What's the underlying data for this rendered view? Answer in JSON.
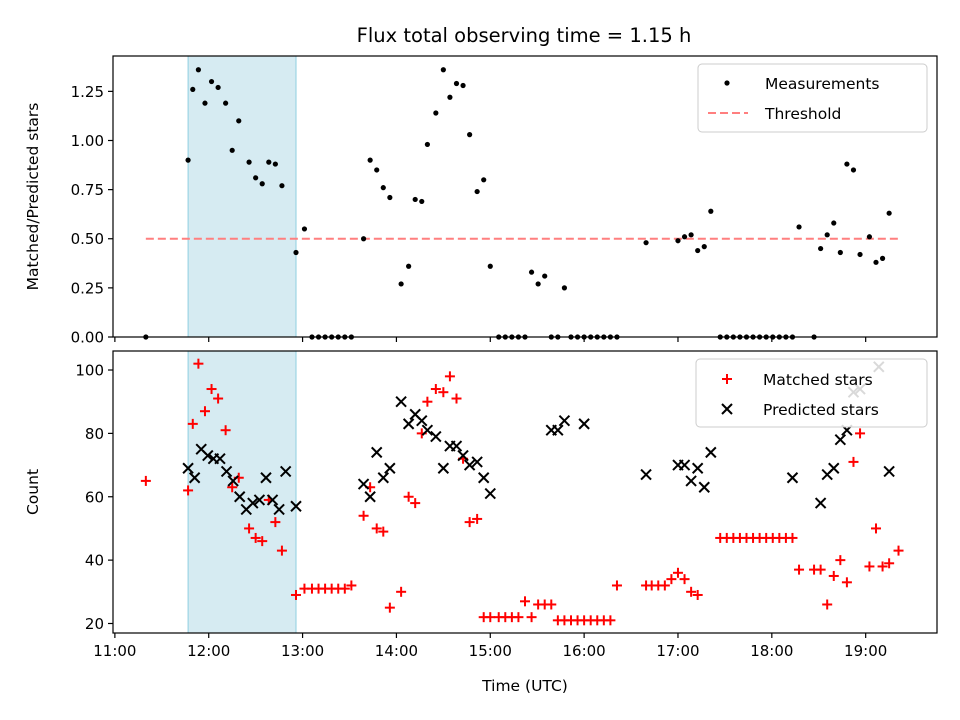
{
  "title": "Flux total observing time = 1.15 h",
  "x_axis": {
    "label": "Time (UTC)",
    "ticks": [
      "11:00",
      "12:00",
      "13:00",
      "14:00",
      "15:00",
      "16:00",
      "17:00",
      "18:00",
      "19:00"
    ],
    "tick_values": [
      11,
      12,
      13,
      14,
      15,
      16,
      17,
      18,
      19
    ],
    "range": [
      10.98,
      19.76
    ]
  },
  "colors": {
    "measurements": "#000000",
    "threshold": "#ff7f7f",
    "matched": "#ff0000",
    "predicted": "#000000",
    "highlight": "#add8e6"
  },
  "chart_data": [
    {
      "type": "scatter",
      "ylabel": "Matched/Predicted stars",
      "ylim": [
        0,
        1.43
      ],
      "yticks": [
        "0.00",
        "0.25",
        "0.50",
        "0.75",
        "1.00",
        "1.25"
      ],
      "ytick_values": [
        0,
        0.25,
        0.5,
        0.75,
        1.0,
        1.25
      ],
      "highlight_span": [
        11.78,
        12.93
      ],
      "legend": {
        "position": "top-right",
        "entries": [
          "Measurements",
          "Threshold"
        ]
      },
      "threshold": {
        "name": "Threshold",
        "x": [
          11.33,
          19.35
        ],
        "y": 0.5
      },
      "series": [
        {
          "name": "Measurements",
          "points": [
            [
              11.33,
              0.0
            ],
            [
              11.78,
              0.9
            ],
            [
              11.83,
              1.26
            ],
            [
              11.89,
              1.36
            ],
            [
              11.96,
              1.19
            ],
            [
              12.03,
              1.3
            ],
            [
              12.1,
              1.27
            ],
            [
              12.18,
              1.19
            ],
            [
              12.25,
              0.95
            ],
            [
              12.32,
              1.1
            ],
            [
              12.43,
              0.89
            ],
            [
              12.5,
              0.81
            ],
            [
              12.57,
              0.78
            ],
            [
              12.64,
              0.89
            ],
            [
              12.71,
              0.88
            ],
            [
              12.78,
              0.77
            ],
            [
              12.93,
              0.43
            ],
            [
              13.02,
              0.55
            ],
            [
              13.1,
              0.0
            ],
            [
              13.17,
              0.0
            ],
            [
              13.24,
              0.0
            ],
            [
              13.31,
              0.0
            ],
            [
              13.38,
              0.0
            ],
            [
              13.45,
              0.0
            ],
            [
              13.52,
              0.0
            ],
            [
              13.65,
              0.5
            ],
            [
              13.72,
              0.9
            ],
            [
              13.79,
              0.85
            ],
            [
              13.86,
              0.76
            ],
            [
              13.93,
              0.71
            ],
            [
              14.05,
              0.27
            ],
            [
              14.13,
              0.36
            ],
            [
              14.2,
              0.7
            ],
            [
              14.27,
              0.69
            ],
            [
              14.33,
              0.98
            ],
            [
              14.42,
              1.14
            ],
            [
              14.5,
              1.36
            ],
            [
              14.57,
              1.22
            ],
            [
              14.64,
              1.29
            ],
            [
              14.71,
              1.28
            ],
            [
              14.78,
              1.03
            ],
            [
              14.86,
              0.74
            ],
            [
              14.93,
              0.8
            ],
            [
              15.0,
              0.36
            ],
            [
              15.09,
              0.0
            ],
            [
              15.16,
              0.0
            ],
            [
              15.23,
              0.0
            ],
            [
              15.3,
              0.0
            ],
            [
              15.37,
              0.0
            ],
            [
              15.44,
              0.33
            ],
            [
              15.51,
              0.27
            ],
            [
              15.58,
              0.31
            ],
            [
              15.65,
              0.0
            ],
            [
              15.72,
              0.0
            ],
            [
              15.79,
              0.25
            ],
            [
              15.86,
              0.0
            ],
            [
              15.93,
              0.0
            ],
            [
              16.0,
              0.0
            ],
            [
              16.07,
              0.0
            ],
            [
              16.14,
              0.0
            ],
            [
              16.21,
              0.0
            ],
            [
              16.28,
              0.0
            ],
            [
              16.35,
              0.0
            ],
            [
              16.66,
              0.48
            ],
            [
              17.0,
              0.49
            ],
            [
              17.07,
              0.51
            ],
            [
              17.14,
              0.52
            ],
            [
              17.21,
              0.44
            ],
            [
              17.28,
              0.46
            ],
            [
              17.35,
              0.64
            ],
            [
              17.45,
              0.0
            ],
            [
              17.52,
              0.0
            ],
            [
              17.59,
              0.0
            ],
            [
              17.66,
              0.0
            ],
            [
              17.73,
              0.0
            ],
            [
              17.8,
              0.0
            ],
            [
              17.87,
              0.0
            ],
            [
              17.94,
              0.0
            ],
            [
              18.01,
              0.0
            ],
            [
              18.08,
              0.0
            ],
            [
              18.15,
              0.0
            ],
            [
              18.22,
              0.0
            ],
            [
              18.29,
              0.56
            ],
            [
              18.45,
              0.0
            ],
            [
              18.52,
              0.45
            ],
            [
              18.59,
              0.52
            ],
            [
              18.66,
              0.58
            ],
            [
              18.73,
              0.43
            ],
            [
              18.8,
              0.88
            ],
            [
              18.87,
              0.85
            ],
            [
              18.94,
              0.42
            ],
            [
              19.04,
              0.51
            ],
            [
              19.11,
              0.38
            ],
            [
              19.18,
              0.4
            ],
            [
              19.25,
              0.63
            ]
          ]
        }
      ]
    },
    {
      "type": "scatter",
      "ylabel": "Count",
      "ylim": [
        17,
        106
      ],
      "yticks": [
        "20",
        "40",
        "60",
        "80",
        "100"
      ],
      "ytick_values": [
        20,
        40,
        60,
        80,
        100
      ],
      "highlight_span": [
        11.78,
        12.93
      ],
      "legend": {
        "position": "top-right",
        "entries": [
          "Matched stars",
          "Predicted stars"
        ]
      },
      "series": [
        {
          "name": "Matched stars",
          "marker": "plus",
          "points": [
            [
              11.33,
              65
            ],
            [
              11.78,
              62
            ],
            [
              11.83,
              83
            ],
            [
              11.89,
              102
            ],
            [
              11.96,
              87
            ],
            [
              12.03,
              94
            ],
            [
              12.1,
              91
            ],
            [
              12.18,
              81
            ],
            [
              12.25,
              63
            ],
            [
              12.32,
              66
            ],
            [
              12.43,
              50
            ],
            [
              12.5,
              47
            ],
            [
              12.57,
              46
            ],
            [
              12.64,
              59
            ],
            [
              12.71,
              52
            ],
            [
              12.78,
              43
            ],
            [
              12.93,
              29
            ],
            [
              13.02,
              31
            ],
            [
              13.1,
              31
            ],
            [
              13.17,
              31
            ],
            [
              13.24,
              31
            ],
            [
              13.31,
              31
            ],
            [
              13.38,
              31
            ],
            [
              13.45,
              31
            ],
            [
              13.52,
              32
            ],
            [
              13.65,
              54
            ],
            [
              13.72,
              63
            ],
            [
              13.79,
              50
            ],
            [
              13.86,
              49
            ],
            [
              13.93,
              25
            ],
            [
              14.05,
              30
            ],
            [
              14.13,
              60
            ],
            [
              14.2,
              58
            ],
            [
              14.27,
              80
            ],
            [
              14.33,
              90
            ],
            [
              14.42,
              94
            ],
            [
              14.5,
              93
            ],
            [
              14.57,
              98
            ],
            [
              14.64,
              91
            ],
            [
              14.71,
              72
            ],
            [
              14.78,
              52
            ],
            [
              14.86,
              53
            ],
            [
              14.93,
              22
            ],
            [
              15.0,
              22
            ],
            [
              15.09,
              22
            ],
            [
              15.16,
              22
            ],
            [
              15.23,
              22
            ],
            [
              15.3,
              22
            ],
            [
              15.37,
              27
            ],
            [
              15.44,
              22
            ],
            [
              15.51,
              26
            ],
            [
              15.58,
              26
            ],
            [
              15.65,
              26
            ],
            [
              15.72,
              21
            ],
            [
              15.79,
              21
            ],
            [
              15.86,
              21
            ],
            [
              15.93,
              21
            ],
            [
              16.0,
              21
            ],
            [
              16.07,
              21
            ],
            [
              16.14,
              21
            ],
            [
              16.21,
              21
            ],
            [
              16.28,
              21
            ],
            [
              16.35,
              32
            ],
            [
              16.66,
              32
            ],
            [
              16.72,
              32
            ],
            [
              16.79,
              32
            ],
            [
              16.86,
              32
            ],
            [
              16.93,
              34
            ],
            [
              17.0,
              36
            ],
            [
              17.07,
              34
            ],
            [
              17.14,
              30
            ],
            [
              17.21,
              29
            ],
            [
              17.45,
              47
            ],
            [
              17.52,
              47
            ],
            [
              17.59,
              47
            ],
            [
              17.66,
              47
            ],
            [
              17.73,
              47
            ],
            [
              17.8,
              47
            ],
            [
              17.87,
              47
            ],
            [
              17.94,
              47
            ],
            [
              18.01,
              47
            ],
            [
              18.08,
              47
            ],
            [
              18.15,
              47
            ],
            [
              18.22,
              47
            ],
            [
              18.29,
              37
            ],
            [
              18.45,
              37
            ],
            [
              18.52,
              37
            ],
            [
              18.59,
              26
            ],
            [
              18.66,
              35
            ],
            [
              18.73,
              40
            ],
            [
              18.8,
              33
            ],
            [
              18.87,
              71
            ],
            [
              18.94,
              80
            ],
            [
              19.04,
              38
            ],
            [
              19.11,
              50
            ],
            [
              19.18,
              38
            ],
            [
              19.25,
              39
            ],
            [
              19.35,
              43
            ]
          ]
        },
        {
          "name": "Predicted stars",
          "marker": "x",
          "points": [
            [
              11.78,
              69
            ],
            [
              11.85,
              66
            ],
            [
              11.92,
              75
            ],
            [
              11.99,
              73
            ],
            [
              12.05,
              72
            ],
            [
              12.12,
              72
            ],
            [
              12.19,
              68
            ],
            [
              12.26,
              65
            ],
            [
              12.33,
              60
            ],
            [
              12.4,
              56
            ],
            [
              12.47,
              58
            ],
            [
              12.54,
              59
            ],
            [
              12.61,
              66
            ],
            [
              12.68,
              59
            ],
            [
              12.75,
              56
            ],
            [
              12.82,
              68
            ],
            [
              12.93,
              57
            ],
            [
              13.65,
              64
            ],
            [
              13.72,
              60
            ],
            [
              13.79,
              74
            ],
            [
              13.86,
              66
            ],
            [
              13.93,
              69
            ],
            [
              14.05,
              90
            ],
            [
              14.13,
              83
            ],
            [
              14.2,
              86
            ],
            [
              14.27,
              84
            ],
            [
              14.33,
              81
            ],
            [
              14.42,
              79
            ],
            [
              14.5,
              69
            ],
            [
              14.57,
              76
            ],
            [
              14.64,
              76
            ],
            [
              14.71,
              73
            ],
            [
              14.78,
              70
            ],
            [
              14.86,
              71
            ],
            [
              14.93,
              66
            ],
            [
              15.0,
              61
            ],
            [
              15.65,
              81
            ],
            [
              15.72,
              81
            ],
            [
              15.79,
              84
            ],
            [
              16.0,
              83
            ],
            [
              16.66,
              67
            ],
            [
              17.0,
              70
            ],
            [
              17.07,
              70
            ],
            [
              17.14,
              65
            ],
            [
              17.21,
              69
            ],
            [
              17.28,
              63
            ],
            [
              17.35,
              74
            ],
            [
              18.22,
              66
            ],
            [
              18.52,
              58
            ],
            [
              18.59,
              67
            ],
            [
              18.66,
              69
            ],
            [
              18.73,
              78
            ],
            [
              18.8,
              81
            ],
            [
              18.87,
              93
            ],
            [
              18.94,
              94
            ],
            [
              19.14,
              101
            ],
            [
              19.25,
              68
            ]
          ]
        }
      ]
    }
  ]
}
